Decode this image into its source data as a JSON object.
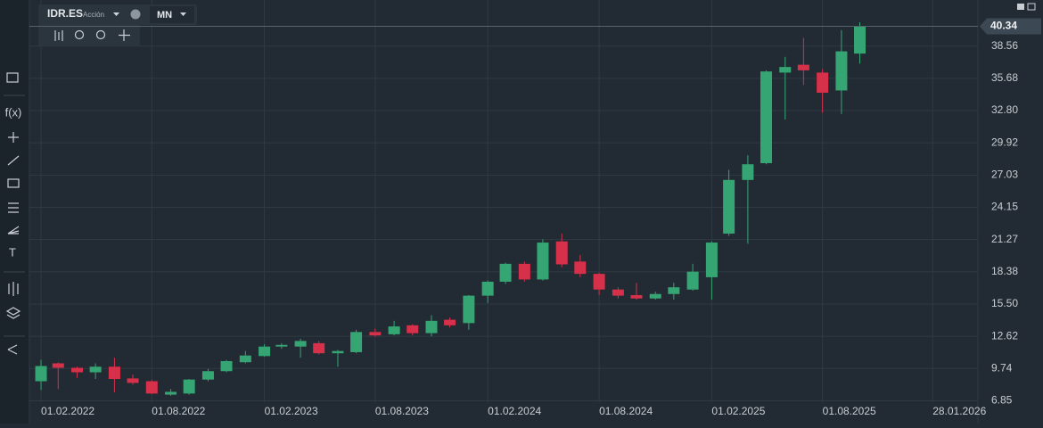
{
  "chart_data": {
    "type": "candlestick",
    "x": [
      "2022-02-01",
      "2022-03-01",
      "2022-04-01",
      "2022-05-01",
      "2022-06-01",
      "2022-07-01",
      "2022-08-01",
      "2022-09-01",
      "2022-10-01",
      "2022-11-01",
      "2022-12-01",
      "2023-01-01",
      "2023-02-01",
      "2023-03-01",
      "2023-04-01",
      "2023-05-01",
      "2023-06-01",
      "2023-07-01",
      "2023-08-01",
      "2023-09-01",
      "2023-10-01",
      "2023-11-01",
      "2023-12-01",
      "2024-01-01",
      "2024-02-01",
      "2024-03-01",
      "2024-04-01",
      "2024-05-01",
      "2024-06-01",
      "2024-07-01",
      "2024-08-01",
      "2024-09-01",
      "2024-10-01",
      "2024-11-01",
      "2024-12-01",
      "2025-01-01",
      "2025-02-01",
      "2025-03-01",
      "2025-04-01",
      "2025-05-01",
      "2025-06-01",
      "2025-07-01",
      "2025-08-01",
      "2025-09-01",
      "2025-10-01"
    ],
    "open": [
      8.6,
      10.2,
      9.8,
      9.4,
      9.9,
      8.85,
      8.6,
      7.4,
      7.5,
      8.75,
      9.5,
      10.3,
      10.85,
      11.7,
      11.7,
      12.0,
      11.1,
      11.2,
      13.0,
      12.8,
      13.6,
      12.9,
      14.1,
      13.8,
      16.25,
      17.5,
      19.1,
      17.7,
      21.1,
      19.3,
      18.2,
      16.8,
      16.3,
      16.0,
      16.4,
      16.8,
      17.9,
      21.8,
      26.6,
      28.1,
      36.2,
      36.9,
      36.2,
      34.6,
      37.9
    ],
    "high": [
      10.52,
      10.3,
      9.9,
      10.2,
      10.7,
      9.2,
      8.7,
      7.9,
      8.8,
      9.7,
      10.5,
      11.3,
      11.9,
      12.0,
      12.4,
      12.2,
      11.4,
      13.2,
      13.3,
      14.0,
      13.7,
      14.5,
      14.3,
      16.3,
      17.6,
      19.2,
      19.3,
      21.3,
      21.8,
      19.9,
      18.3,
      17.0,
      17.4,
      16.6,
      17.4,
      19.1,
      21.1,
      27.5,
      28.8,
      36.4,
      37.6,
      39.3,
      36.5,
      40.0,
      40.7
    ],
    "low": [
      7.81,
      7.9,
      8.9,
      8.8,
      7.6,
      8.3,
      7.45,
      7.3,
      7.4,
      8.6,
      9.4,
      10.2,
      10.8,
      11.5,
      10.7,
      11.0,
      9.9,
      11.1,
      12.6,
      12.7,
      12.7,
      12.6,
      13.4,
      13.2,
      15.6,
      17.3,
      17.5,
      17.6,
      18.8,
      17.9,
      16.3,
      16.0,
      15.9,
      15.9,
      15.9,
      16.7,
      15.9,
      21.6,
      20.9,
      28.0,
      32.0,
      35.1,
      32.6,
      32.5,
      37.0
    ],
    "close": [
      9.96,
      9.8,
      9.4,
      9.9,
      8.8,
      8.45,
      7.5,
      7.65,
      8.75,
      9.5,
      10.4,
      10.9,
      11.7,
      11.85,
      12.2,
      11.1,
      11.3,
      13.0,
      12.7,
      13.5,
      12.9,
      14.0,
      13.6,
      16.25,
      17.5,
      19.1,
      17.7,
      21.0,
      19.05,
      18.2,
      16.8,
      16.25,
      16.0,
      16.4,
      17.0,
      18.4,
      21.0,
      26.6,
      28.0,
      36.3,
      36.7,
      36.4,
      34.4,
      38.1,
      40.34
    ],
    "up_color": "#35a673",
    "down_color": "#d7304a",
    "xlim": [
      "2022-01-13",
      "2026-04-12"
    ],
    "xticks": [
      {
        "value": "2022-02-01",
        "label": "01.02.2022"
      },
      {
        "value": "2022-08-01",
        "label": "01.08.2022"
      },
      {
        "value": "2023-02-01",
        "label": "01.02.2023"
      },
      {
        "value": "2023-08-01",
        "label": "01.08.2023"
      },
      {
        "value": "2024-02-01",
        "label": "01.02.2024"
      },
      {
        "value": "2024-08-01",
        "label": "01.08.2024"
      },
      {
        "value": "2025-02-01",
        "label": "01.02.2025"
      },
      {
        "value": "2025-08-01",
        "label": "01.08.2025"
      },
      {
        "value": "2026-01-28",
        "label": "28.01.2026"
      }
    ],
    "ylim": [
      6.73,
      42.69
    ],
    "yticks": [
      6.85,
      9.74,
      12.62,
      {
        "value": 15.5,
        "label": "15.50"
      },
      18.38,
      21.27,
      24.15,
      27.03,
      29.92,
      {
        "value": 32.8,
        "label": "32.80"
      },
      35.68,
      38.56
    ],
    "last_price": 40.34,
    "grid": true
  },
  "ui": {
    "symbol": "IDR.ES",
    "symbol_type": "Acción",
    "interval": "MN",
    "function_tool": "f(x)",
    "text_tool": "T"
  }
}
